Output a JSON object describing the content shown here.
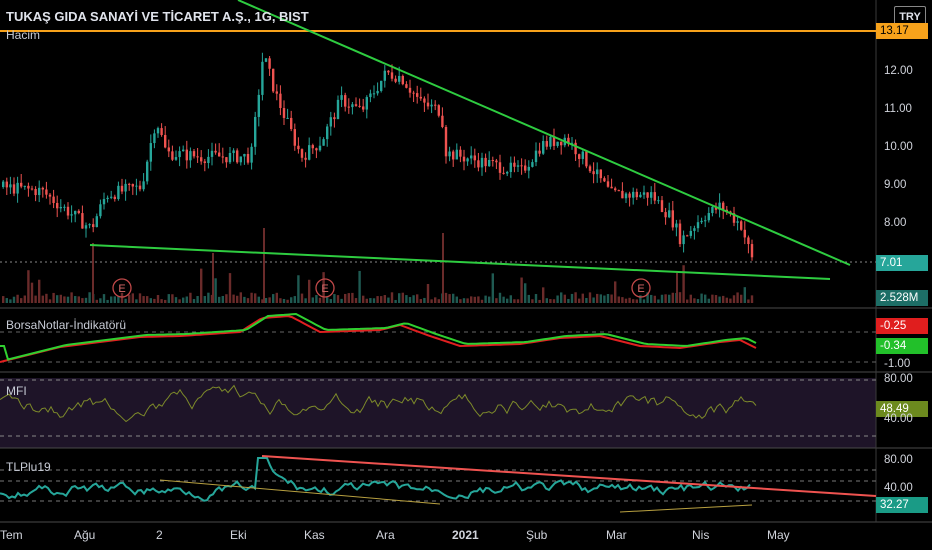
{
  "header": {
    "title": "TUKAŞ GIDA SANAYİ VE TİCARET A.Ş., 1G, BIST",
    "currency_button": "TRY"
  },
  "panes": {
    "price": {
      "volume_label": "Hacim",
      "y_ticks": [
        "12.00",
        "11.00",
        "10.00",
        "9.00",
        "8.00"
      ],
      "horizontal_line_value": "13.17",
      "last_price": "7.01",
      "volume_value": "2.528M",
      "earnings_markers": [
        "E",
        "E",
        "E"
      ]
    },
    "indicator": {
      "name": "BorsaNotlar-İndikatörü",
      "value_red": "-0.25",
      "value_green": "-0.34",
      "tick_bottom": "-1.00"
    },
    "mfi": {
      "name": "MFI",
      "tick_top": "80.00",
      "value": "48.49",
      "tick_bottom": "40.00"
    },
    "tlplu": {
      "name": "TLPlu19",
      "tick_top": "80.00",
      "tick_mid": "40.00",
      "value": "32.27"
    }
  },
  "x_axis": {
    "labels": [
      "Tem",
      "Ağu",
      "2",
      "Eki",
      "Kas",
      "Ara",
      "2021",
      "Şub",
      "Mar",
      "Nis",
      "May"
    ]
  },
  "colors": {
    "background": "#000000",
    "up_candle": "#26a69a",
    "down_candle": "#ef5350",
    "trendline": "#2ecc40",
    "horizontal_line": "#f7a21b",
    "mfi_fill": "#1e1428",
    "tlplu_line": "#26a69a",
    "tlplu_trend": "#ef5350"
  }
}
